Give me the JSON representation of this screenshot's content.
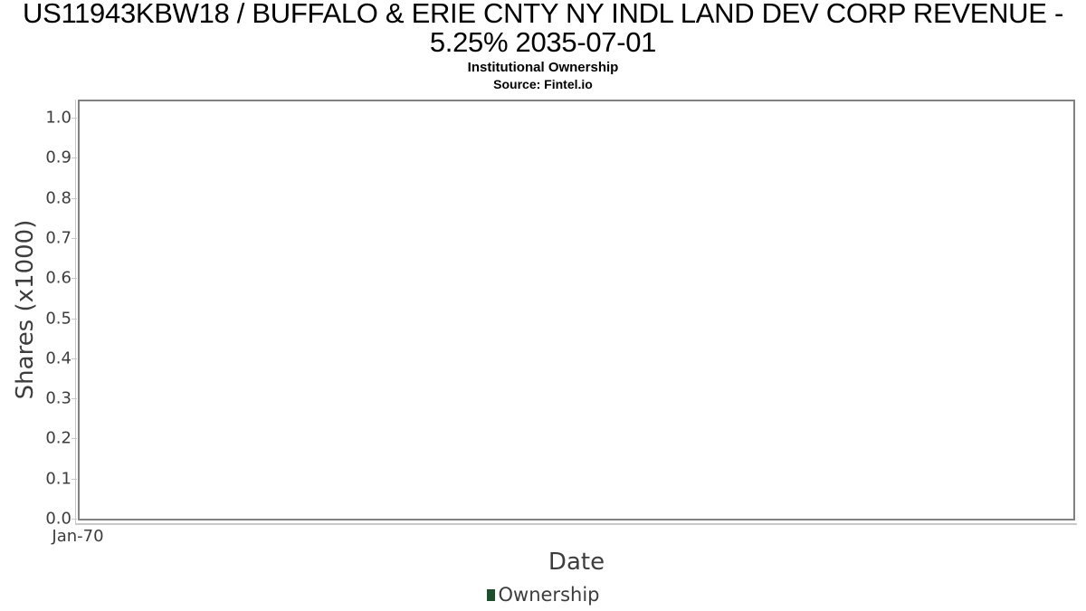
{
  "header": {
    "title_line1": "US11943KBW18 / BUFFALO & ERIE CNTY NY INDL LAND DEV CORP REVENUE -",
    "title_line2": "5.25% 2035-07-01",
    "subtitle": "Institutional Ownership",
    "source": "Source: Fintel.io"
  },
  "chart_data": {
    "type": "line",
    "title": "US11943KBW18 / BUFFALO & ERIE CNTY NY INDL LAND DEV CORP REVENUE - 5.25% 2035-07-01",
    "subtitle": "Institutional Ownership",
    "source": "Source: Fintel.io",
    "xlabel": "Date",
    "ylabel": "Shares (x1000)",
    "x_ticks": [
      "Jan-70"
    ],
    "y_ticks": [
      "0.0",
      "0.1",
      "0.2",
      "0.3",
      "0.4",
      "0.5",
      "0.6",
      "0.7",
      "0.8",
      "0.9",
      "1.0"
    ],
    "ylim": [
      0,
      1.05
    ],
    "grid": true,
    "legend_position": "bottom",
    "series": [
      {
        "name": "Ownership",
        "color": "#1e4f2d",
        "values": []
      }
    ],
    "colors": {
      "grid": "#e6e6e6",
      "plot_border": "#818181",
      "axis_line": "#c9c9c9",
      "tick_text": "#3d3d3d",
      "title_text": "#000000"
    }
  }
}
